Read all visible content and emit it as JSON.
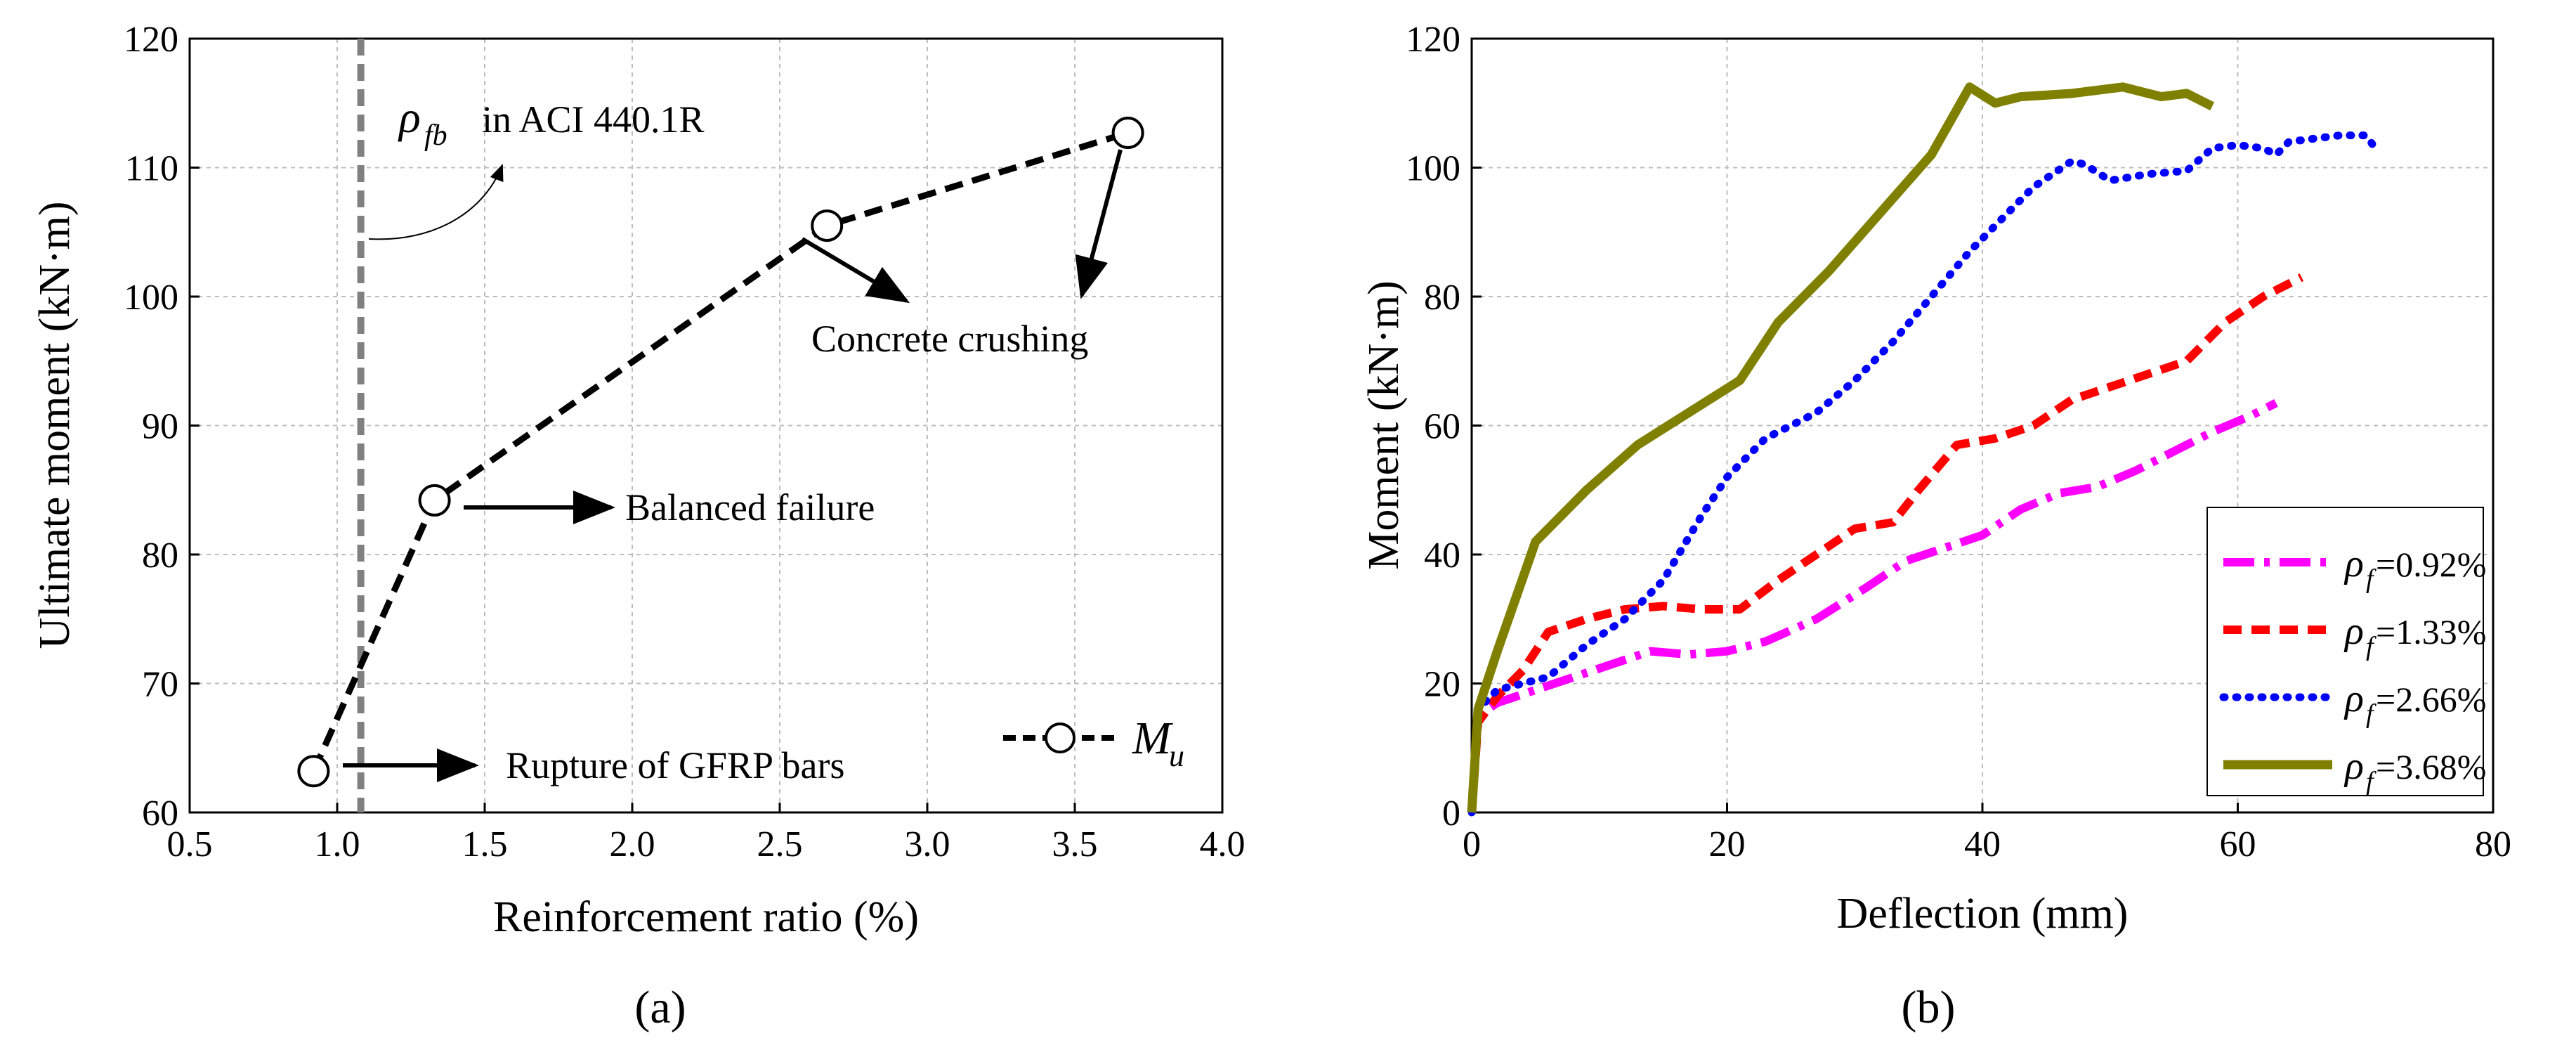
{
  "chart_data": [
    {
      "type": "line",
      "panel_label": "(a)",
      "xlabel": "Reinforcement ratio (%)",
      "ylabel": "Ultimate moment (kN·m)",
      "xlim": [
        0.5,
        4.0
      ],
      "ylim": [
        60,
        120
      ],
      "xticks": [
        "0.5",
        "1.0",
        "1.5",
        "2.0",
        "2.5",
        "3.0",
        "3.5",
        "4.0"
      ],
      "yticks": [
        "60",
        "70",
        "80",
        "90",
        "100",
        "110",
        "120"
      ],
      "grid": true,
      "legend_position": "bottom-right",
      "series": [
        {
          "name": "M",
          "name_sub": "u",
          "x": [
            0.92,
            1.33,
            2.66,
            3.68
          ],
          "y": [
            63.2,
            84.2,
            105.5,
            112.7
          ],
          "color": "#000000",
          "style": "dashed",
          "marker": "open-circle"
        }
      ],
      "reference_line": {
        "x": 1.08,
        "label_symbol": "ρ",
        "label_sub": "fb",
        "label_text": "in ACI 440.1R",
        "color": "#808080"
      },
      "annotations": {
        "rupture": "Rupture of GFRP bars",
        "balanced": "Balanced failure",
        "crushing": "Concrete crushing"
      }
    },
    {
      "type": "line",
      "panel_label": "(b)",
      "xlabel": "Deflection (mm)",
      "ylabel": "Moment (kN·m)",
      "xlim": [
        0,
        80
      ],
      "ylim": [
        0,
        120
      ],
      "xticks": [
        "0",
        "20",
        "40",
        "60",
        "80"
      ],
      "yticks": [
        "0",
        "20",
        "40",
        "60",
        "80",
        "100",
        "120"
      ],
      "grid": true,
      "legend_position": "bottom-right",
      "series": [
        {
          "name": "=0.92%",
          "symbol": "ρ",
          "sub": "f",
          "color": "#ff00ff",
          "style": "dashdot",
          "x": [
            0,
            0.5,
            2,
            5,
            8,
            11,
            14,
            17,
            20,
            23,
            27,
            31,
            34,
            37,
            40,
            43,
            46,
            49,
            52,
            55,
            58,
            61,
            63
          ],
          "y": [
            0,
            15,
            17,
            19,
            21,
            23,
            25,
            24.5,
            25,
            26.5,
            30,
            35,
            39,
            41,
            43,
            47,
            49.5,
            50.5,
            53,
            56,
            59,
            61.5,
            63.5
          ]
        },
        {
          "name": "=1.33%",
          "symbol": "ρ",
          "sub": "f",
          "color": "#ff0000",
          "style": "dashed",
          "x": [
            0,
            0.5,
            2,
            4,
            6,
            9,
            12,
            15,
            18,
            21,
            24,
            27,
            30,
            33,
            35,
            38,
            41,
            44,
            47,
            50,
            53,
            56,
            59,
            62,
            65
          ],
          "y": [
            0,
            14,
            18,
            22,
            28,
            30,
            31.5,
            32,
            31.5,
            31.5,
            36,
            40,
            44,
            45,
            50,
            57,
            58,
            60,
            64,
            66,
            68,
            70,
            76,
            80,
            83
          ]
        },
        {
          "name": "=2.66%",
          "symbol": "ρ",
          "sub": "f",
          "color": "#0000ff",
          "style": "dotted",
          "x": [
            0,
            0.5,
            2,
            4,
            6,
            9,
            12,
            15,
            18,
            20,
            23,
            27,
            30,
            33,
            36,
            39,
            42,
            44,
            47,
            48,
            50,
            53,
            56,
            58,
            60,
            62,
            63,
            64,
            66,
            68,
            70,
            71
          ],
          "y": [
            0,
            16,
            19,
            20,
            21,
            26,
            30,
            36,
            46,
            52,
            58,
            62,
            67,
            73,
            80,
            87,
            93,
            97,
            101,
            100.5,
            98,
            99,
            99.5,
            103,
            103.5,
            103,
            102,
            104,
            104.5,
            105,
            105,
            102.5
          ]
        },
        {
          "name": "=3.68%",
          "symbol": "ρ",
          "sub": "f",
          "color": "#808000",
          "style": "solid",
          "x": [
            0,
            0.5,
            2,
            5,
            9,
            13,
            17,
            21,
            24,
            28,
            32,
            36,
            39,
            41,
            43,
            47,
            51,
            54,
            56,
            58
          ],
          "y": [
            0,
            16,
            25,
            42,
            50,
            57,
            62,
            67,
            76,
            84,
            93,
            102,
            112.5,
            110,
            111,
            111.5,
            112.5,
            111,
            111.5,
            109.5
          ]
        }
      ]
    }
  ]
}
